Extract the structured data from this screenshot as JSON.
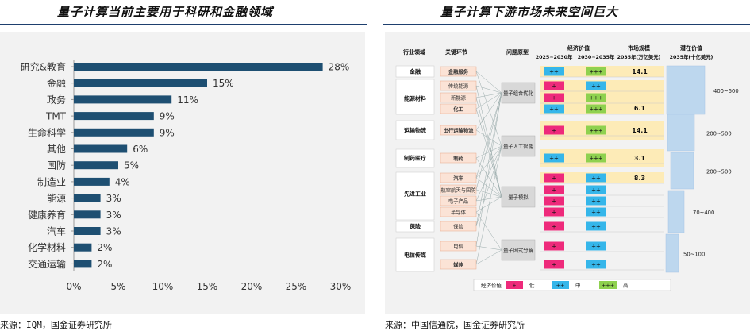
{
  "left": {
    "title": "量子计算当前主要用于科研和金融领域",
    "source": "来源：IQM，国金证券研究所"
  },
  "right": {
    "title": "量子计算下游市场未来空间巨大",
    "source": "来源：中国信通院，国金证券研究所"
  },
  "colors": {
    "bar": "#1e4f72",
    "accent": "#1e3f6e",
    "pink": "#ee2a7b",
    "blue": "#35b6ea",
    "green": "#8fd14f",
    "potential": "#bdd7ee",
    "market": "#fdebb7"
  },
  "chart_data": [
    {
      "type": "bar",
      "orientation": "horizontal",
      "categories": [
        "研究&教育",
        "金融",
        "政务",
        "TMT",
        "生命科学",
        "其他",
        "国防",
        "制造业",
        "能源",
        "健康养育",
        "汽车",
        "化学材料",
        "交通运输"
      ],
      "values": [
        28,
        15,
        11,
        9,
        9,
        6,
        5,
        4,
        3,
        3,
        3,
        2,
        2
      ],
      "value_labels": [
        "28%",
        "15%",
        "11%",
        "9%",
        "9%",
        "6%",
        "5%",
        "4%",
        "3%",
        "3%",
        "3%",
        "2%",
        "2%"
      ],
      "xlim": [
        0,
        30
      ],
      "x_ticks": [
        "0%",
        "5%",
        "10%",
        "15%",
        "20%",
        "25%",
        "30%"
      ],
      "grid": false
    },
    {
      "type": "table",
      "headers": {
        "industry": "行业领域",
        "link": "关键环节",
        "prototype": "问题原型",
        "econ": "经济价值",
        "econ_a": "2025~2030年",
        "econ_b": "2030~2035年",
        "market": "市场规模",
        "market_sub": "2035年(万亿美元)",
        "potential": "潜在价值",
        "potential_sub": "2035年(十亿美元)"
      },
      "industries": [
        "金融",
        "能源材料",
        "运输物流",
        "制药医疗",
        "先进工业",
        "保险",
        "电信传媒"
      ],
      "links": [
        "金融服务",
        "传统能源",
        "新能源",
        "化工",
        "出行运输物流",
        "制药",
        "汽车",
        "航空航天与国防",
        "电子产品",
        "半导体",
        "保险",
        "电信",
        "媒体"
      ],
      "prototypes": [
        "量子组合优化",
        "量子人工智能",
        "量子模拟",
        "量子因式分解"
      ],
      "econ_a": [
        "++",
        "+",
        "+",
        "++",
        "+",
        "++",
        "+",
        "+",
        "+",
        "+",
        "+",
        "+",
        "+"
      ],
      "econ_b": [
        "+++",
        "++",
        "+++",
        "+++",
        "+++",
        "+++",
        "++",
        "++",
        "++",
        "++",
        "++",
        "++",
        "++"
      ],
      "market_values": [
        {
          "industry": "金融",
          "value": "14.1"
        },
        {
          "industry": "能源材料",
          "value": "6.1"
        },
        {
          "industry": "运输物流",
          "value": "14.1"
        },
        {
          "industry": "制药医疗",
          "value": "3.1"
        },
        {
          "industry": "先进工业",
          "value": "8.3"
        }
      ],
      "potential_values": [
        "400~600",
        "200~500",
        "200~500",
        "70~400",
        "50~100"
      ],
      "legend": {
        "label": "经济价值",
        "items": [
          {
            "sym": "+",
            "text": "低"
          },
          {
            "sym": "++",
            "text": "中"
          },
          {
            "sym": "+++",
            "text": "高"
          }
        ]
      }
    }
  ]
}
